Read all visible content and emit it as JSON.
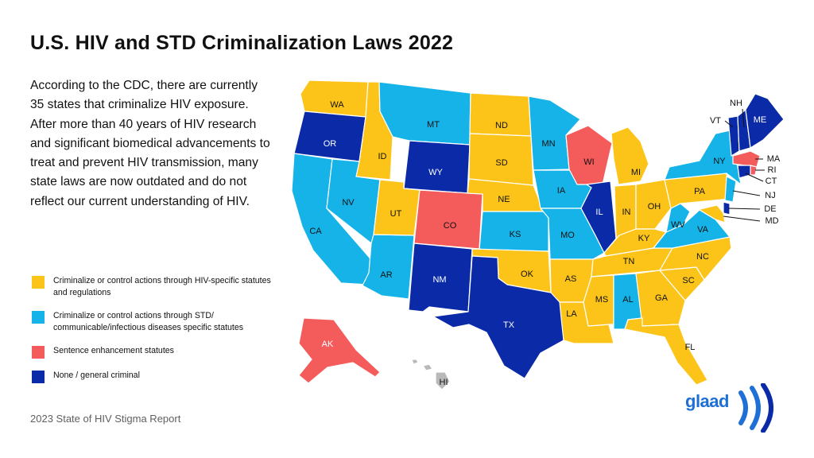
{
  "title": "U.S. HIV and STD Criminalization Laws 2022",
  "intro": "According to the CDC, there are currently 35 states that criminalize HIV exposure. After more than 40 years of HIV research and significant biomedical advancements to treat and prevent HIV transmission, many state laws are now outdated and do not reflect our current understanding of HIV.",
  "legend": [
    {
      "label": "Criminalize or control actions through HIV-specific statutes and regulations",
      "color": "#fcc419"
    },
    {
      "label": "Criminalize or control actions through STD/ communicable/infectious diseases specific statutes",
      "color": "#16b3e8"
    },
    {
      "label": "Sentence enhancement statutes",
      "color": "#f45b5b"
    },
    {
      "label": "None / general criminal",
      "color": "#0a2aa8"
    }
  ],
  "footer": "2023 State of HIV Stigma Report",
  "logo_text": "glaad",
  "colors": {
    "hiv": "#fcc419",
    "std": "#16b3e8",
    "sentence": "#f45b5b",
    "none": "#0a2aa8",
    "hawaii": "#b9b9b9"
  },
  "states": [
    {
      "code": "WA",
      "cat": "hiv"
    },
    {
      "code": "OR",
      "cat": "none"
    },
    {
      "code": "CA",
      "cat": "std"
    },
    {
      "code": "ID",
      "cat": "hiv"
    },
    {
      "code": "NV",
      "cat": "std"
    },
    {
      "code": "AZ",
      "cat": "std"
    },
    {
      "code": "MT",
      "cat": "std"
    },
    {
      "code": "WY",
      "cat": "none"
    },
    {
      "code": "UT",
      "cat": "hiv"
    },
    {
      "code": "CO",
      "cat": "sentence"
    },
    {
      "code": "NM",
      "cat": "none"
    },
    {
      "code": "ND",
      "cat": "hiv"
    },
    {
      "code": "SD",
      "cat": "hiv"
    },
    {
      "code": "NE",
      "cat": "hiv"
    },
    {
      "code": "KS",
      "cat": "std"
    },
    {
      "code": "OK",
      "cat": "hiv"
    },
    {
      "code": "TX",
      "cat": "none"
    },
    {
      "code": "MN",
      "cat": "std"
    },
    {
      "code": "IA",
      "cat": "std"
    },
    {
      "code": "MO",
      "cat": "std"
    },
    {
      "code": "AR",
      "cat": "hiv"
    },
    {
      "code": "LA",
      "cat": "hiv"
    },
    {
      "code": "WI",
      "cat": "sentence"
    },
    {
      "code": "IL",
      "cat": "none"
    },
    {
      "code": "MI",
      "cat": "hiv"
    },
    {
      "code": "IN",
      "cat": "hiv"
    },
    {
      "code": "OH",
      "cat": "hiv"
    },
    {
      "code": "KY",
      "cat": "hiv"
    },
    {
      "code": "TN",
      "cat": "hiv"
    },
    {
      "code": "MS",
      "cat": "hiv"
    },
    {
      "code": "AL",
      "cat": "std"
    },
    {
      "code": "GA",
      "cat": "hiv"
    },
    {
      "code": "FL",
      "cat": "hiv"
    },
    {
      "code": "SC",
      "cat": "hiv"
    },
    {
      "code": "NC",
      "cat": "hiv"
    },
    {
      "code": "VA",
      "cat": "std"
    },
    {
      "code": "WV",
      "cat": "std"
    },
    {
      "code": "PA",
      "cat": "hiv"
    },
    {
      "code": "NY",
      "cat": "std"
    },
    {
      "code": "VT",
      "cat": "none"
    },
    {
      "code": "NH",
      "cat": "none"
    },
    {
      "code": "ME",
      "cat": "none"
    },
    {
      "code": "MA",
      "cat": "sentence"
    },
    {
      "code": "RI",
      "cat": "sentence"
    },
    {
      "code": "CT",
      "cat": "none"
    },
    {
      "code": "NJ",
      "cat": "std"
    },
    {
      "code": "DE",
      "cat": "none"
    },
    {
      "code": "MD",
      "cat": "hiv"
    },
    {
      "code": "AK",
      "cat": "sentence"
    },
    {
      "code": "HI",
      "cat": "hawaii"
    }
  ]
}
